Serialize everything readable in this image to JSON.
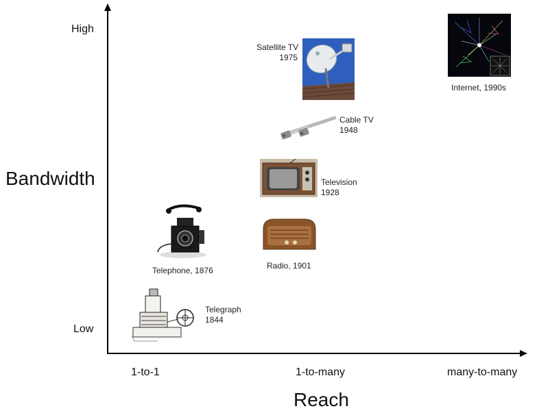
{
  "axes": {
    "y_title": "Bandwidth",
    "x_title": "Reach",
    "y_ticks": {
      "high": "High",
      "low": "Low"
    },
    "x_ticks": {
      "left": "1-to-1",
      "middle": "1-to-many",
      "right": "many-to-many"
    }
  },
  "items": {
    "telegraph": {
      "line1": "Telegraph",
      "line2": "1844"
    },
    "telephone": {
      "label": "Telephone, 1876"
    },
    "radio": {
      "label": "Radio, 1901"
    },
    "television": {
      "line1": "Television",
      "line2": "1928"
    },
    "cable_tv": {
      "line1": "Cable TV",
      "line2": "1948"
    },
    "satellite_tv": {
      "line1": "Satellite TV",
      "line2": "1975"
    },
    "internet": {
      "label": "Internet, 1990s"
    }
  }
}
